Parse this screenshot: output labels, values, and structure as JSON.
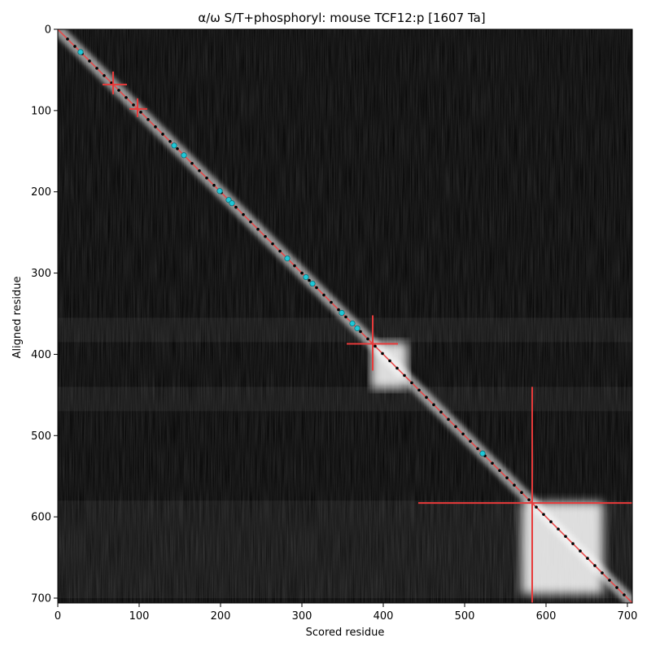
{
  "chart_data": {
    "type": "heatmap",
    "title": "α/ω S/T+phosphoryl: mouse TCF12:p [1607 Ta]",
    "xlabel": "Scored residue",
    "ylabel": "Aligned residue",
    "xlim": [
      0,
      706
    ],
    "ylim": [
      706,
      0
    ],
    "x_ticks": [
      0,
      100,
      200,
      300,
      400,
      500,
      600,
      700
    ],
    "y_ticks": [
      0,
      100,
      200,
      300,
      400,
      500,
      600,
      700
    ],
    "grid": false,
    "colormap": "greyscale",
    "diagonal_line": {
      "from": [
        0,
        0
      ],
      "to": [
        706,
        706
      ],
      "color": "#e84a4a"
    },
    "highlight_points": {
      "color": "#1ec8d8",
      "residues": [
        28,
        143,
        155,
        199,
        210,
        214,
        282,
        305,
        313,
        349,
        362,
        368,
        522
      ]
    },
    "error_crosses": {
      "color": "#e83a3a",
      "items": [
        {
          "x": 68,
          "y": 68,
          "xerr": [
            55,
            85
          ],
          "yerr": [
            52,
            80
          ]
        },
        {
          "x": 98,
          "y": 98,
          "xerr": [
            88,
            110
          ],
          "yerr": [
            85,
            108
          ]
        },
        {
          "x": 387,
          "y": 387,
          "xerr": [
            355,
            418
          ],
          "yerr": [
            352,
            420
          ]
        },
        {
          "x": 583,
          "y": 583,
          "xerr": [
            443,
            706
          ],
          "yerr": [
            440,
            706
          ]
        }
      ]
    },
    "bright_blocks": [
      {
        "x": [
          385,
          430
        ],
        "y": [
          385,
          442
        ]
      },
      {
        "x": [
          570,
          670
        ],
        "y": [
          582,
          695
        ]
      }
    ]
  }
}
